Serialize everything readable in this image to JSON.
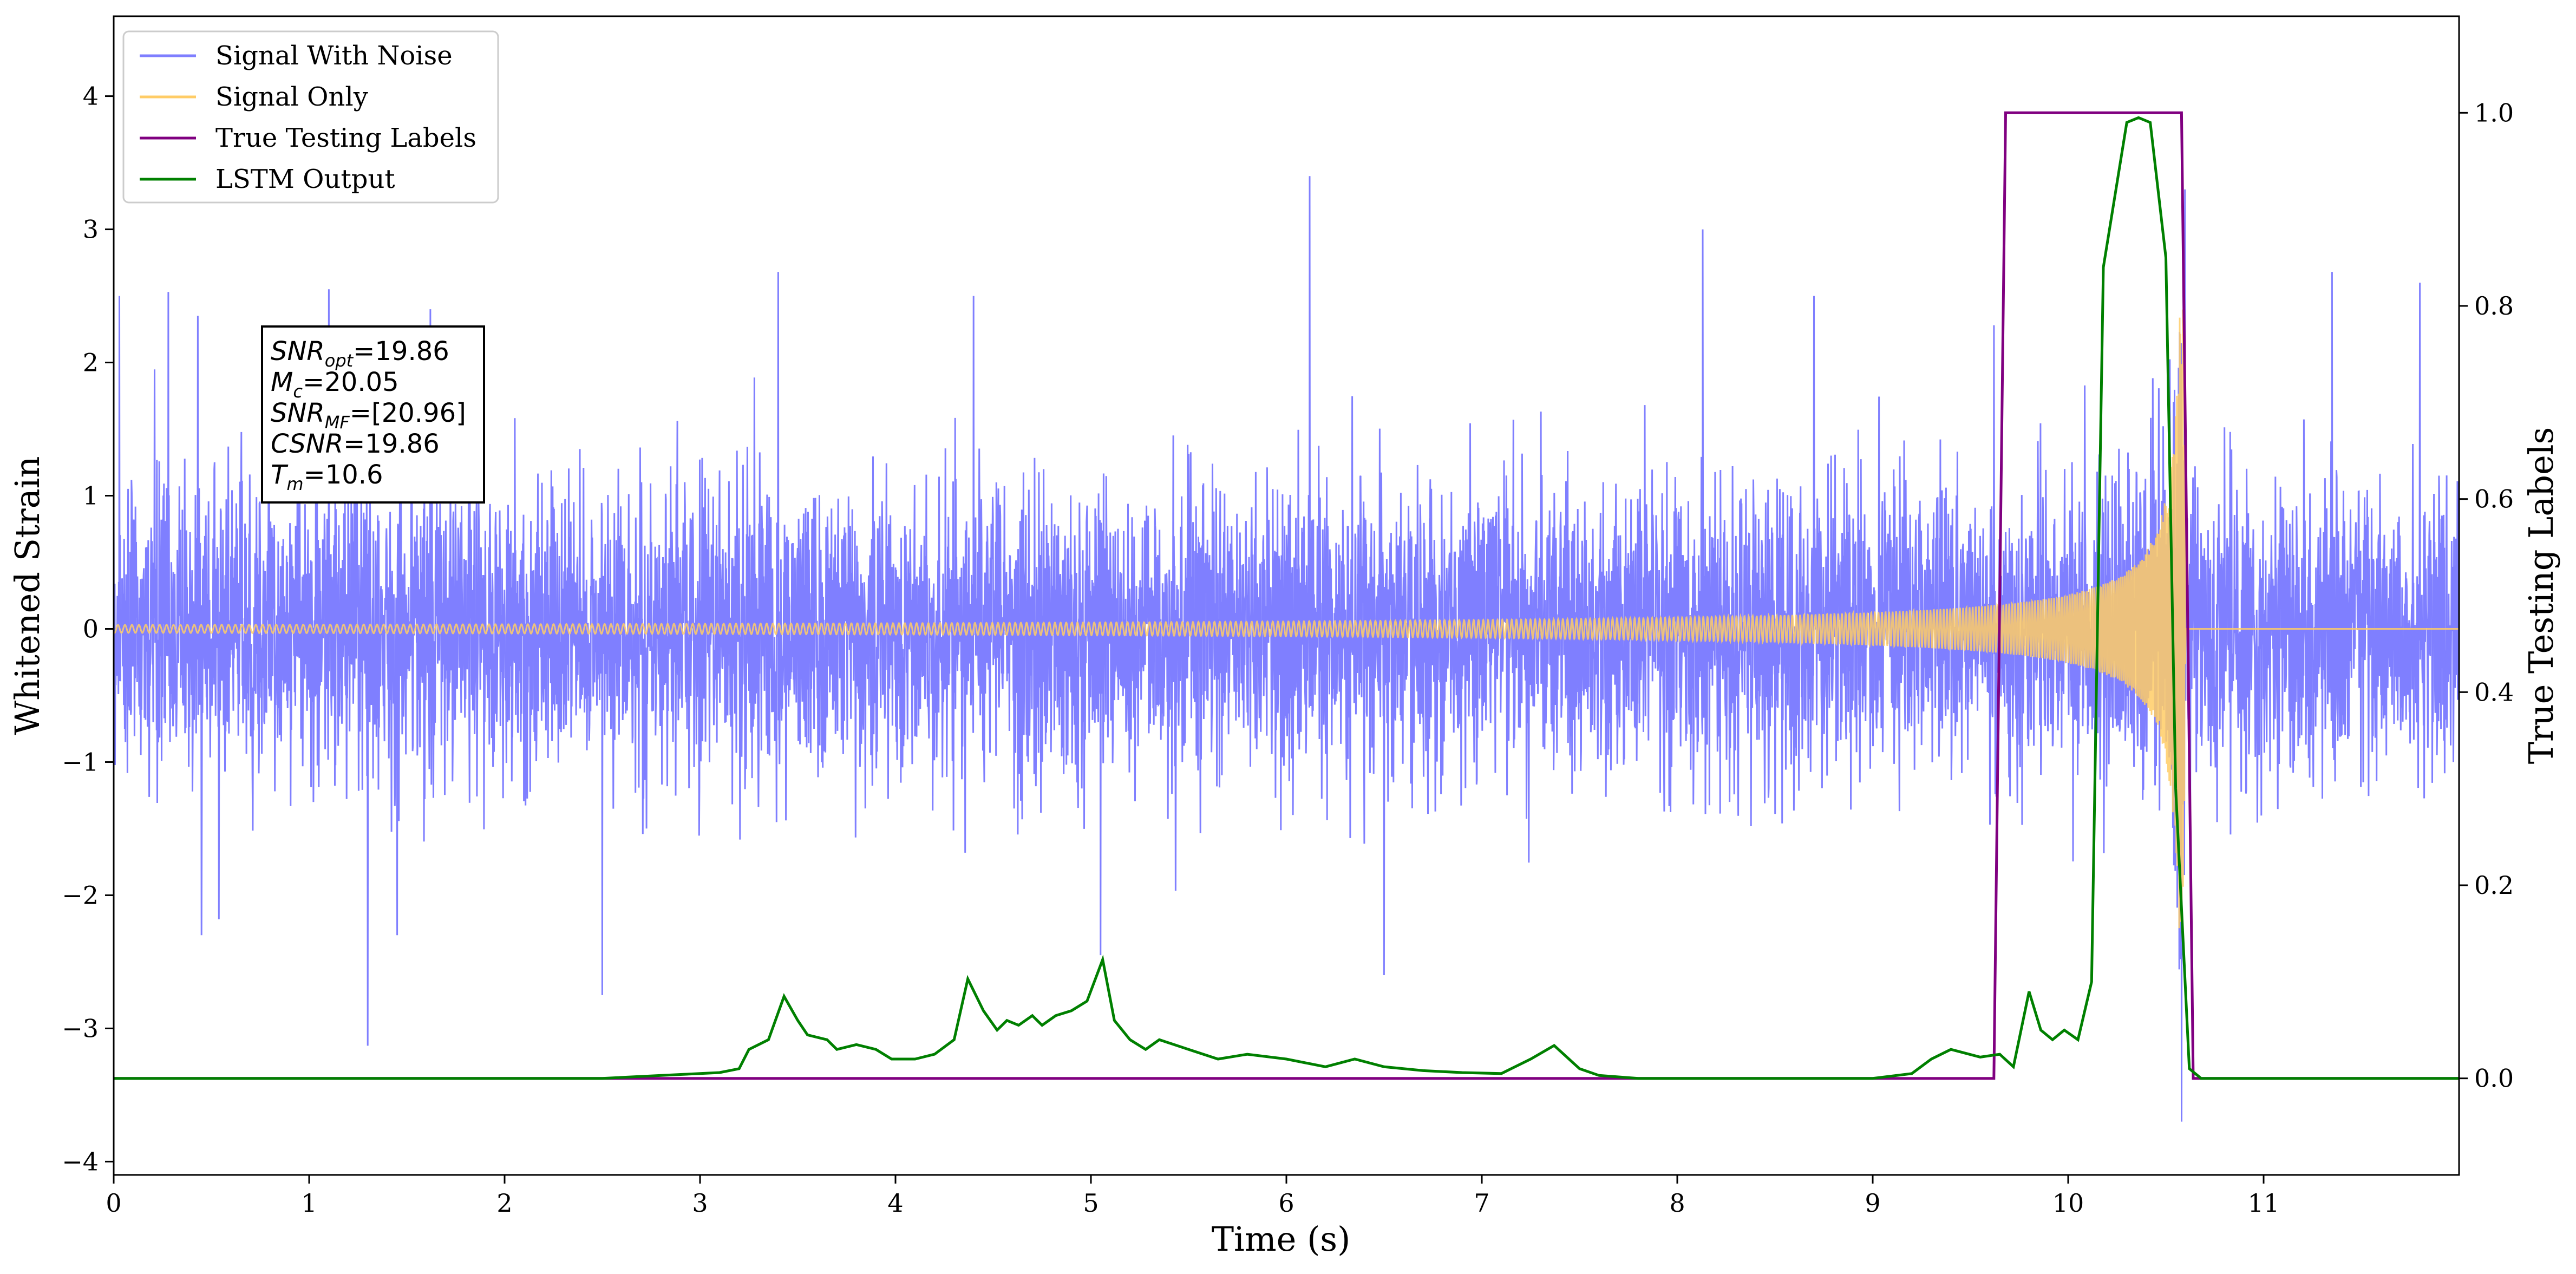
{
  "chart_data": {
    "type": "line",
    "xlabel": "Time (s)",
    "ylabel": "Whitened Strain",
    "y2label": "True Testing Labels",
    "xlim": [
      0,
      12
    ],
    "ylim": [
      -4.1,
      4.6
    ],
    "y2lim": [
      -0.1,
      1.1
    ],
    "xticks": [
      "0",
      "1",
      "2",
      "3",
      "4",
      "5",
      "6",
      "7",
      "8",
      "9",
      "10",
      "11"
    ],
    "yticks": [
      "−4",
      "−3",
      "−2",
      "−1",
      "0",
      "1",
      "2",
      "3",
      "4"
    ],
    "y2ticks": [
      "0.0",
      "0.2",
      "0.4",
      "0.6",
      "0.8",
      "1.0"
    ],
    "grid": false,
    "legend_position": "top-left",
    "series": [
      {
        "name": "Signal With Noise",
        "axis": "left",
        "color": "#7f7fff",
        "description": "white-noise-dominated strain, amplitude about ±1.3 with spikes to ±2.5 (max ≈3.4 near t=6.1, min ≈−3.7 near t=10.6)",
        "noise_sigma": 0.55,
        "spikes": [
          {
            "x": 0.03,
            "y": 2.5
          },
          {
            "x": 0.28,
            "y": 2.53
          },
          {
            "x": 0.43,
            "y": 2.35
          },
          {
            "x": 0.45,
            "y": -2.3
          },
          {
            "x": 1.1,
            "y": 2.55
          },
          {
            "x": 1.3,
            "y": -3.13
          },
          {
            "x": 1.45,
            "y": -2.3
          },
          {
            "x": 1.62,
            "y": 2.4
          },
          {
            "x": 2.5,
            "y": -2.75
          },
          {
            "x": 3.4,
            "y": 2.68
          },
          {
            "x": 4.4,
            "y": 2.5
          },
          {
            "x": 5.05,
            "y": -2.45
          },
          {
            "x": 6.12,
            "y": 3.4
          },
          {
            "x": 6.5,
            "y": -2.6
          },
          {
            "x": 8.13,
            "y": 3.0
          },
          {
            "x": 8.7,
            "y": 2.5
          },
          {
            "x": 9.62,
            "y": 2.28
          },
          {
            "x": 10.58,
            "y": -3.7
          },
          {
            "x": 11.35,
            "y": 2.68
          },
          {
            "x": 11.8,
            "y": 2.6
          }
        ]
      },
      {
        "name": "Signal Only",
        "axis": "left",
        "color": "#ffcc66",
        "description": "chirp, amplitude ~0.03 rising to ~2.4 at merger t≈10.6, zero afterwards",
        "merger_time": 10.6,
        "start_amplitude": 0.03,
        "peak_amplitude": 2.4
      },
      {
        "name": "True Testing Labels",
        "axis": "right",
        "color": "#800080",
        "x": [
          0,
          9.62,
          9.68,
          10.58,
          10.64,
          12
        ],
        "y": [
          0,
          0,
          1,
          1,
          0,
          0
        ]
      },
      {
        "name": "LSTM Output",
        "axis": "right",
        "color": "#008000",
        "x": [
          0,
          2.5,
          2.9,
          3.0,
          3.1,
          3.2,
          3.25,
          3.35,
          3.43,
          3.5,
          3.55,
          3.65,
          3.7,
          3.8,
          3.9,
          3.98,
          4.1,
          4.2,
          4.3,
          4.37,
          4.45,
          4.52,
          4.57,
          4.63,
          4.7,
          4.75,
          4.82,
          4.9,
          4.98,
          5.06,
          5.12,
          5.2,
          5.28,
          5.35,
          5.5,
          5.65,
          5.8,
          6.0,
          6.2,
          6.35,
          6.5,
          6.7,
          6.9,
          7.1,
          7.25,
          7.37,
          7.5,
          7.6,
          7.8,
          8.5,
          9.0,
          9.2,
          9.3,
          9.4,
          9.55,
          9.65,
          9.72,
          9.8,
          9.86,
          9.92,
          9.98,
          10.05,
          10.12,
          10.18,
          10.3,
          10.36,
          10.42,
          10.5,
          10.55,
          10.62,
          10.68,
          10.75,
          12
        ],
        "y": [
          0,
          0,
          0.004,
          0.005,
          0.006,
          0.01,
          0.03,
          0.04,
          0.085,
          0.06,
          0.045,
          0.04,
          0.03,
          0.035,
          0.03,
          0.02,
          0.02,
          0.025,
          0.04,
          0.103,
          0.07,
          0.05,
          0.06,
          0.055,
          0.065,
          0.055,
          0.065,
          0.07,
          0.08,
          0.123,
          0.06,
          0.04,
          0.03,
          0.04,
          0.03,
          0.02,
          0.025,
          0.02,
          0.012,
          0.02,
          0.012,
          0.008,
          0.006,
          0.005,
          0.02,
          0.034,
          0.01,
          0.003,
          0,
          0,
          0,
          0.005,
          0.02,
          0.03,
          0.022,
          0.025,
          0.012,
          0.09,
          0.05,
          0.04,
          0.05,
          0.04,
          0.1,
          0.84,
          0.99,
          0.995,
          0.99,
          0.85,
          0.3,
          0.01,
          0,
          0,
          0
        ]
      }
    ],
    "annotation": [
      {
        "base": "SNR",
        "sub": "opt",
        "value": "=19.86"
      },
      {
        "base": "M",
        "sub": "c",
        "value": "=20.05"
      },
      {
        "base": "SNR",
        "sub": "MF",
        "value": "=[20.96]"
      },
      {
        "base": "CSNR",
        "sub": "",
        "value": "=19.86"
      },
      {
        "base": "T",
        "sub": "m",
        "value": "=10.6"
      }
    ]
  }
}
